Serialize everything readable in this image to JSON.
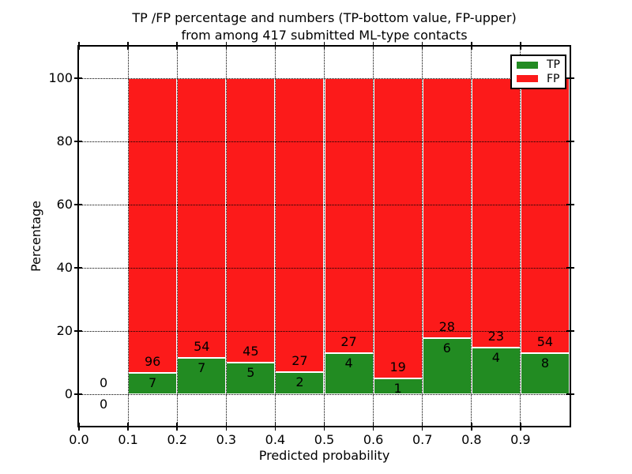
{
  "title": {
    "line1": "TP /FP percentage and numbers (TP-bottom value, FP-upper)",
    "line2": "from among 417 submitted ML-type contacts"
  },
  "axes": {
    "xlabel": "Predicted probability",
    "ylabel": "Percentage",
    "x_tick_labels": [
      "0.0",
      "0.1",
      "0.2",
      "0.3",
      "0.4",
      "0.5",
      "0.6",
      "0.7",
      "0.8",
      "0.9"
    ],
    "x_tick_values": [
      0.0,
      0.1,
      0.2,
      0.3,
      0.4,
      0.5,
      0.6,
      0.7,
      0.8,
      0.9
    ],
    "y_tick_labels": [
      "0",
      "20",
      "40",
      "60",
      "80",
      "100"
    ],
    "y_tick_values": [
      0,
      20,
      40,
      60,
      80,
      100
    ],
    "xlim": [
      0.0,
      1.0
    ],
    "ylim": [
      -10,
      110
    ],
    "grid": "dotted"
  },
  "legend": {
    "position": "upper right",
    "entries": [
      {
        "label": "TP",
        "color": "#228b22"
      },
      {
        "label": "FP",
        "color": "#fc1a1a"
      }
    ]
  },
  "chart_data": {
    "type": "bar",
    "stacked": true,
    "orientation": "vertical",
    "bar_heights_are": "percent of bin total (TP+FP) = 100 per non-empty bin",
    "bin_width": 0.1,
    "bin_starts": [
      0.0,
      0.1,
      0.2,
      0.3,
      0.4,
      0.5,
      0.6,
      0.7,
      0.8,
      0.9
    ],
    "series": [
      {
        "name": "TP",
        "color": "#228b22",
        "counts": [
          0,
          7,
          7,
          5,
          2,
          4,
          1,
          6,
          4,
          8
        ]
      },
      {
        "name": "FP",
        "color": "#fc1a1a",
        "counts": [
          0,
          96,
          54,
          45,
          27,
          27,
          19,
          28,
          23,
          54
        ]
      }
    ],
    "bar_edge_color": "#ffffff",
    "total_contacts_in_title": 417
  }
}
